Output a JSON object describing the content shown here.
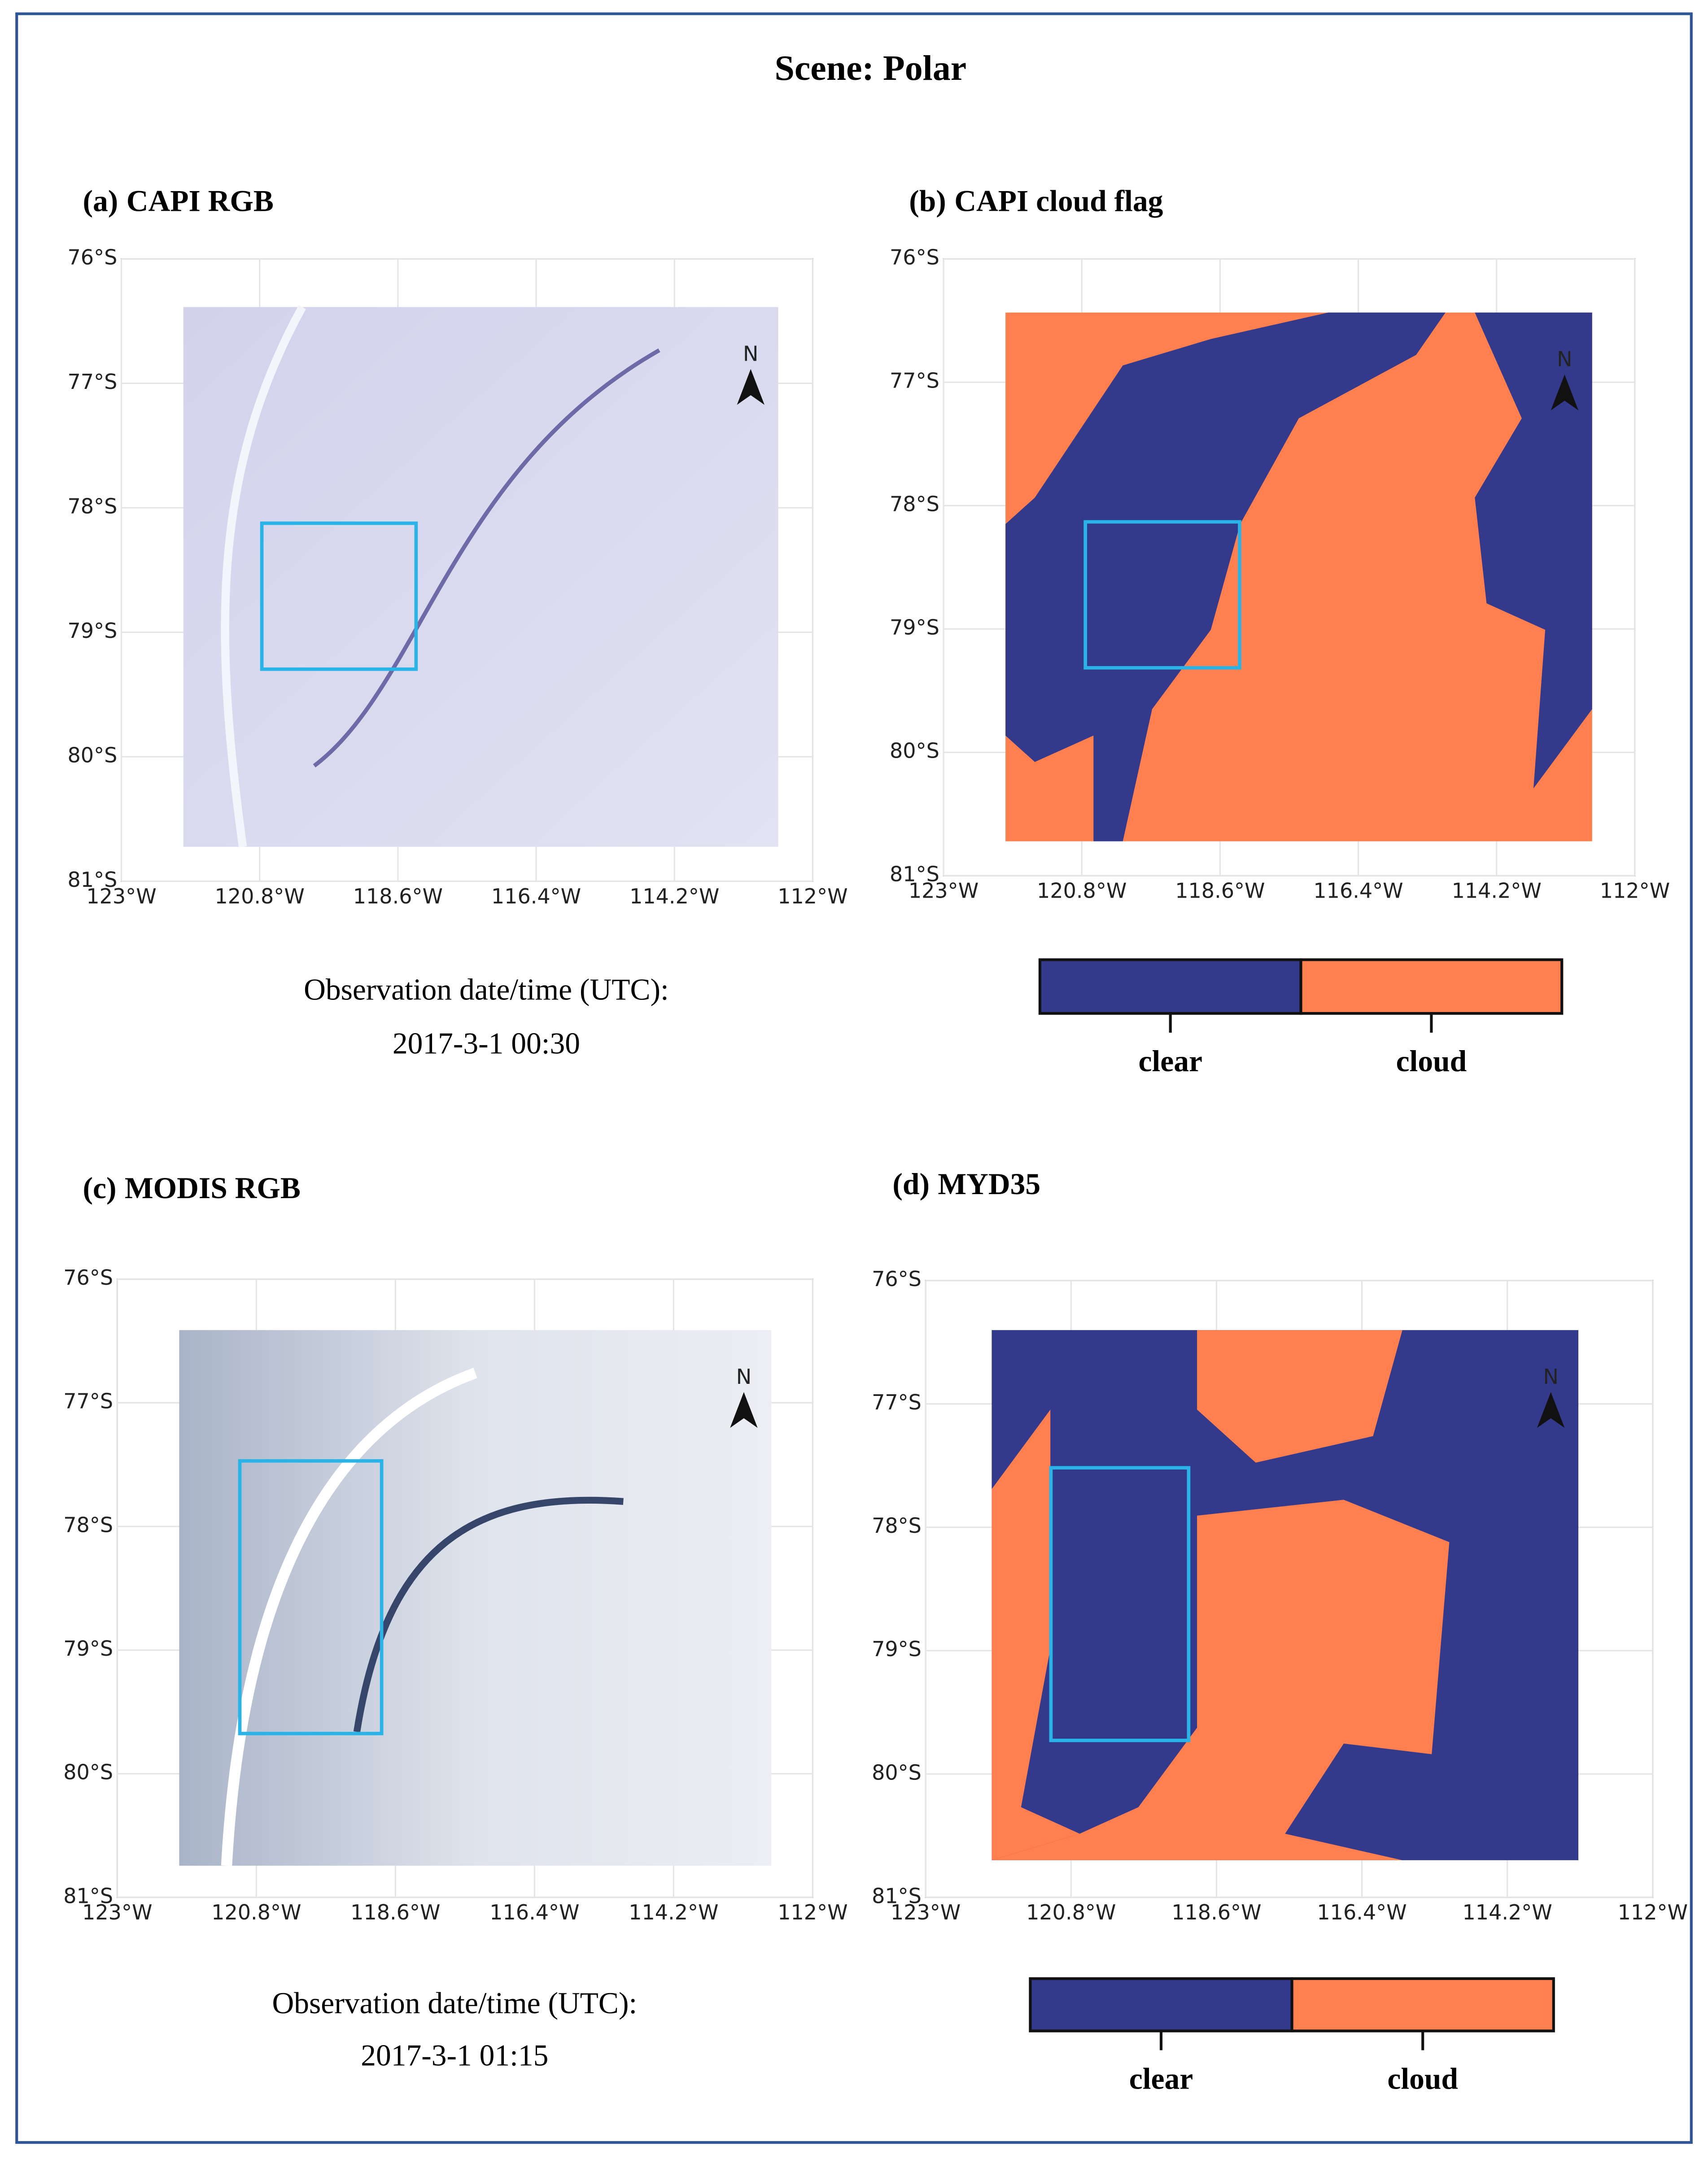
{
  "title": "Scene: Polar",
  "panels": [
    {
      "label": "(a)",
      "title": "CAPI RGB",
      "north": "N",
      "lat_ticks": [
        "76°S",
        "77°S",
        "78°S",
        "79°S",
        "80°S",
        "81°S"
      ],
      "lon_ticks": [
        "123°W",
        "120.8°W",
        "118.6°W",
        "116.4°W",
        "114.2°W",
        "112°W"
      ],
      "caption": [
        "Observation date/time (UTC):",
        "2017-3-1 00:30"
      ]
    },
    {
      "label": "(b)",
      "title": "CAPI cloud flag",
      "north": "N",
      "lat_ticks": [
        "76°S",
        "77°S",
        "78°S",
        "79°S",
        "80°S",
        "81°S"
      ],
      "lon_ticks": [
        "123°W",
        "120.8°W",
        "118.6°W",
        "116.4°W",
        "114.2°W",
        "112°W"
      ],
      "legend": [
        "clear",
        "cloud"
      ]
    },
    {
      "label": "(c)",
      "title": "MODIS RGB",
      "north": "N",
      "lat_ticks": [
        "76°S",
        "77°S",
        "78°S",
        "79°S",
        "80°S",
        "81°S"
      ],
      "lon_ticks": [
        "123°W",
        "120.8°W",
        "118.6°W",
        "116.4°W",
        "114.2°W",
        "112°W"
      ],
      "caption": [
        "Observation date/time (UTC):",
        "2017-3-1 01:15"
      ]
    },
    {
      "label": "(d)",
      "title": "MYD35",
      "north": "N",
      "lat_ticks": [
        "76°S",
        "77°S",
        "78°S",
        "79°S",
        "80°S",
        "81°S"
      ],
      "lon_ticks": [
        "123°W",
        "120.8°W",
        "118.6°W",
        "116.4°W",
        "114.2°W",
        "112°W"
      ],
      "legend": [
        "clear",
        "cloud"
      ]
    }
  ]
}
